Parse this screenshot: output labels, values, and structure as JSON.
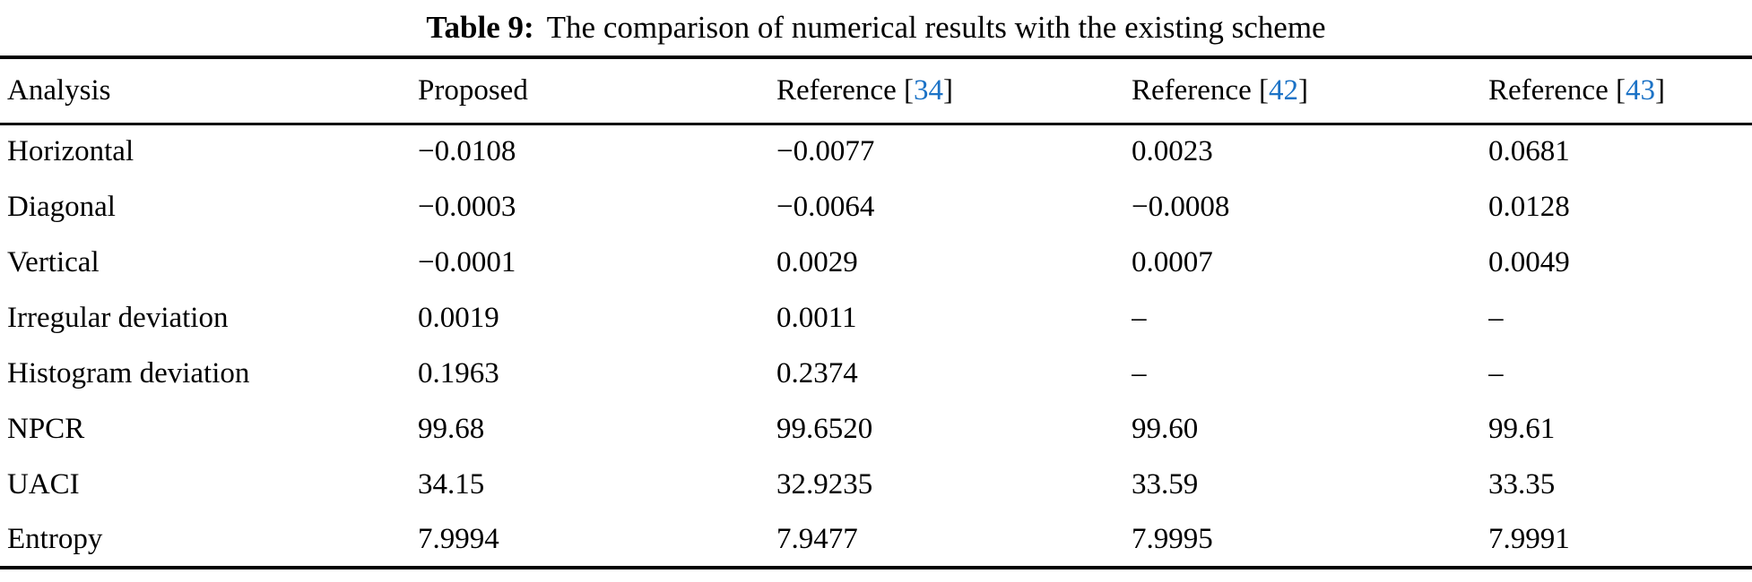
{
  "caption": {
    "label": "Table 9:",
    "text": "The comparison of numerical results with the existing scheme"
  },
  "colors": {
    "link_blue": "#1B72C6",
    "text": "#000000",
    "background": "#ffffff"
  },
  "table": {
    "columns": [
      {
        "label": "Analysis"
      },
      {
        "label": "Proposed"
      },
      {
        "label": "Reference ",
        "bracket_open": "[",
        "ref": "34",
        "bracket_close": "]"
      },
      {
        "label": "Reference ",
        "bracket_open": "[",
        "ref": "42",
        "bracket_close": "]"
      },
      {
        "label": "Reference ",
        "bracket_open": "[",
        "ref": "43",
        "bracket_close": "]"
      }
    ],
    "rows": [
      {
        "analysis": "Horizontal",
        "values": [
          "−0.0108",
          "−0.0077",
          "0.0023",
          "0.0681"
        ]
      },
      {
        "analysis": "Diagonal",
        "values": [
          "−0.0003",
          "−0.0064",
          "−0.0008",
          "0.0128"
        ]
      },
      {
        "analysis": "Vertical",
        "values": [
          "−0.0001",
          "0.0029",
          "0.0007",
          "0.0049"
        ]
      },
      {
        "analysis": "Irregular deviation",
        "values": [
          "0.0019",
          "0.0011",
          "–",
          "–"
        ]
      },
      {
        "analysis": "Histogram deviation",
        "values": [
          "0.1963",
          "0.2374",
          "–",
          "–"
        ]
      },
      {
        "analysis": "NPCR",
        "values": [
          "99.68",
          "99.6520",
          "99.60",
          "99.61"
        ]
      },
      {
        "analysis": "UACI",
        "values": [
          "34.15",
          "32.9235",
          "33.59",
          "33.35"
        ]
      },
      {
        "analysis": "Entropy",
        "values": [
          "7.9994",
          "7.9477",
          "7.9995",
          "7.9991"
        ]
      }
    ]
  }
}
